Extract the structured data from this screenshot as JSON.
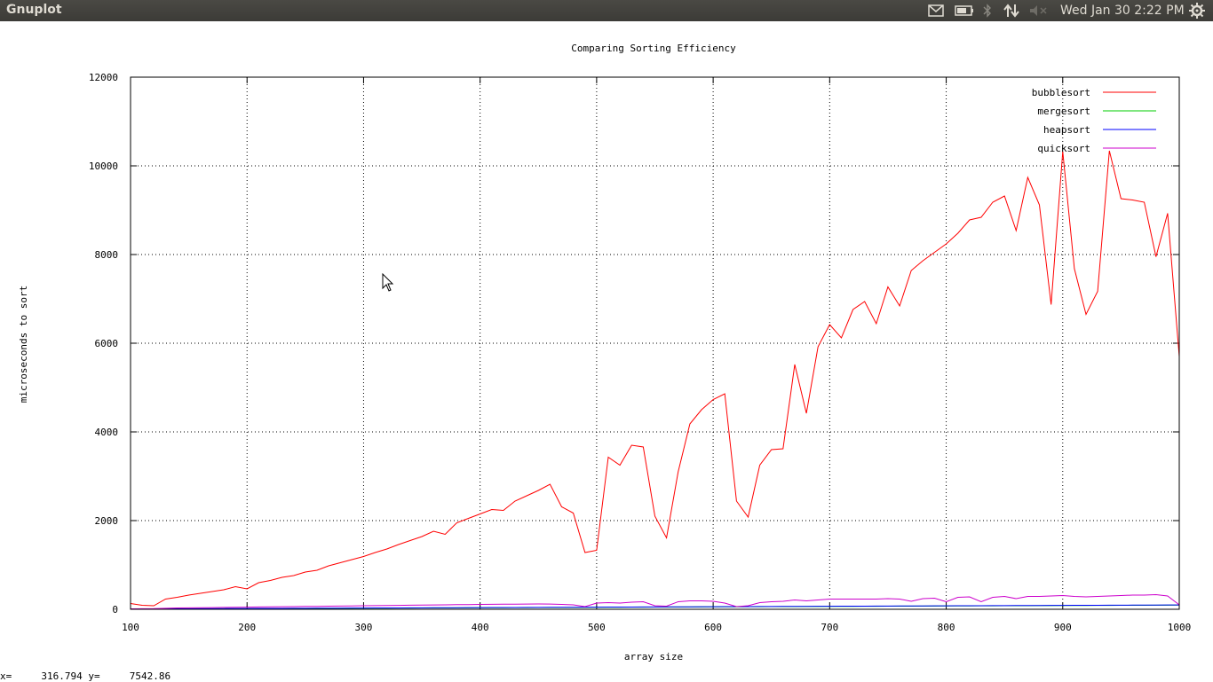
{
  "topbar": {
    "app_title": "Gnuplot",
    "clock": "Wed Jan 30  2:22 PM",
    "icons": [
      "mail-icon",
      "battery-icon",
      "bluetooth-icon",
      "network-icon",
      "volume-muted-icon",
      "settings-gear-icon"
    ]
  },
  "status": {
    "x_label": "x=",
    "x_value": "316.794",
    "y_label": "y=",
    "y_value": "7542.86"
  },
  "chart_data": {
    "type": "line",
    "title": "Comparing Sorting Efficiency",
    "xlabel": "array size",
    "ylabel": "microseconds to sort",
    "xlim": [
      100,
      1000
    ],
    "ylim": [
      0,
      12000
    ],
    "xticks": [
      100,
      200,
      300,
      400,
      500,
      600,
      700,
      800,
      900,
      1000
    ],
    "yticks": [
      0,
      2000,
      4000,
      6000,
      8000,
      10000,
      12000
    ],
    "grid": true,
    "legend_position": "top-right",
    "x": [
      100,
      110,
      120,
      130,
      140,
      150,
      160,
      170,
      180,
      190,
      200,
      210,
      220,
      230,
      240,
      250,
      260,
      270,
      280,
      290,
      300,
      310,
      320,
      330,
      340,
      350,
      360,
      370,
      380,
      390,
      400,
      410,
      420,
      430,
      440,
      450,
      460,
      470,
      480,
      490,
      500,
      510,
      520,
      530,
      540,
      550,
      560,
      570,
      580,
      590,
      600,
      610,
      620,
      630,
      640,
      650,
      660,
      670,
      680,
      690,
      700,
      710,
      720,
      730,
      740,
      750,
      760,
      770,
      780,
      790,
      800,
      810,
      820,
      830,
      840,
      850,
      860,
      870,
      880,
      890,
      900,
      910,
      920,
      930,
      940,
      950,
      960,
      970,
      980,
      990,
      1000
    ],
    "series": [
      {
        "name": "bubblesort",
        "color": "#ff0000",
        "values": [
          130,
          90,
          80,
          230,
          270,
          320,
          360,
          400,
          440,
          510,
          460,
          600,
          650,
          720,
          760,
          840,
          880,
          980,
          1050,
          1120,
          1190,
          1280,
          1360,
          1460,
          1550,
          1640,
          1760,
          1690,
          1950,
          2050,
          2150,
          2250,
          2230,
          2440,
          2560,
          2680,
          2820,
          2310,
          2170,
          1280,
          1330,
          3430,
          3250,
          3700,
          3660,
          2100,
          1610,
          3100,
          4180,
          4500,
          4730,
          4860,
          2440,
          2080,
          3250,
          3600,
          3620,
          5520,
          4420,
          5920,
          6420,
          6120,
          6760,
          6940,
          6440,
          7270,
          6840,
          7640,
          7860,
          8050,
          8240,
          8480,
          8780,
          8840,
          9180,
          9320,
          8540,
          9740,
          9120,
          6870,
          10320,
          7680,
          6650,
          7170,
          10340,
          9260,
          9230,
          9180,
          7950,
          8930,
          5700
        ]
      },
      {
        "name": "mergesort",
        "color": "#00cc00",
        "values": [
          5,
          6,
          6,
          7,
          8,
          9,
          10,
          11,
          12,
          13,
          14,
          15,
          16,
          17,
          18,
          19,
          20,
          21,
          22,
          23,
          24,
          25,
          26,
          27,
          28,
          29,
          30,
          31,
          32,
          33,
          34,
          35,
          36,
          37,
          38,
          39,
          40,
          41,
          42,
          43,
          44,
          45,
          46,
          47,
          48,
          49,
          50,
          51,
          52,
          53,
          54,
          55,
          56,
          57,
          58,
          59,
          60,
          61,
          62,
          63,
          64,
          65,
          66,
          67,
          68,
          69,
          70,
          71,
          72,
          73,
          74,
          75,
          76,
          77,
          78,
          79,
          80,
          81,
          82,
          83,
          84,
          85,
          86,
          87,
          88,
          89,
          90,
          91,
          92,
          93,
          94
        ]
      },
      {
        "name": "heapsort",
        "color": "#0000ff",
        "values": [
          8,
          9,
          10,
          11,
          12,
          13,
          14,
          15,
          16,
          17,
          18,
          19,
          20,
          21,
          22,
          23,
          24,
          25,
          26,
          27,
          28,
          29,
          30,
          31,
          32,
          33,
          34,
          35,
          36,
          37,
          38,
          39,
          40,
          41,
          42,
          43,
          44,
          45,
          46,
          47,
          48,
          49,
          50,
          51,
          52,
          53,
          54,
          55,
          56,
          57,
          58,
          59,
          60,
          61,
          62,
          63,
          64,
          65,
          66,
          67,
          68,
          69,
          70,
          71,
          72,
          73,
          74,
          75,
          76,
          77,
          78,
          79,
          80,
          81,
          82,
          83,
          84,
          85,
          86,
          87,
          88,
          89,
          90,
          91,
          92,
          93,
          94,
          95,
          96,
          97,
          98
        ]
      },
      {
        "name": "quicksort",
        "color": "#cc00cc",
        "values": [
          10,
          12,
          14,
          22,
          30,
          32,
          34,
          38,
          42,
          46,
          48,
          52,
          56,
          58,
          60,
          64,
          66,
          70,
          72,
          76,
          80,
          82,
          86,
          88,
          92,
          94,
          98,
          100,
          104,
          106,
          110,
          112,
          114,
          116,
          118,
          120,
          118,
          110,
          100,
          60,
          140,
          150,
          140,
          160,
          170,
          80,
          70,
          170,
          190,
          190,
          180,
          140,
          60,
          80,
          150,
          170,
          180,
          210,
          190,
          210,
          230,
          230,
          230,
          230,
          230,
          240,
          230,
          180,
          240,
          250,
          170,
          270,
          280,
          170,
          270,
          290,
          240,
          290,
          290,
          300,
          310,
          290,
          280,
          290,
          300,
          310,
          320,
          320,
          330,
          300,
          100
        ]
      }
    ]
  }
}
